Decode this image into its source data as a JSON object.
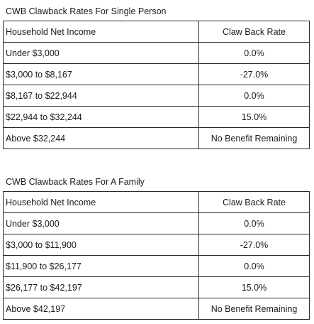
{
  "tables": [
    {
      "caption": "CWB Clawback Rates For Single Person",
      "headers": [
        "Household Net Income",
        "Claw Back Rate"
      ],
      "rows": [
        [
          "Under $3,000",
          "0.0%"
        ],
        [
          "$3,000 to $8,167",
          "-27.0%"
        ],
        [
          "$8,167 to $22,944",
          "0.0%"
        ],
        [
          "$22,944 to $32,244",
          "15.0%"
        ],
        [
          "Above $32,244",
          "No Benefit Remaining"
        ]
      ]
    },
    {
      "caption": "CWB Clawback Rates For A Family",
      "headers": [
        "Household Net Income",
        "Claw Back Rate"
      ],
      "rows": [
        [
          "Under $3,000",
          "0.0%"
        ],
        [
          "$3,000 to $11,900",
          "-27.0%"
        ],
        [
          "$11,900 to $26,177",
          "0.0%"
        ],
        [
          "$26,177 to $42,197",
          "15.0%"
        ],
        [
          "Above $42,197",
          "No Benefit Remaining"
        ]
      ]
    }
  ]
}
